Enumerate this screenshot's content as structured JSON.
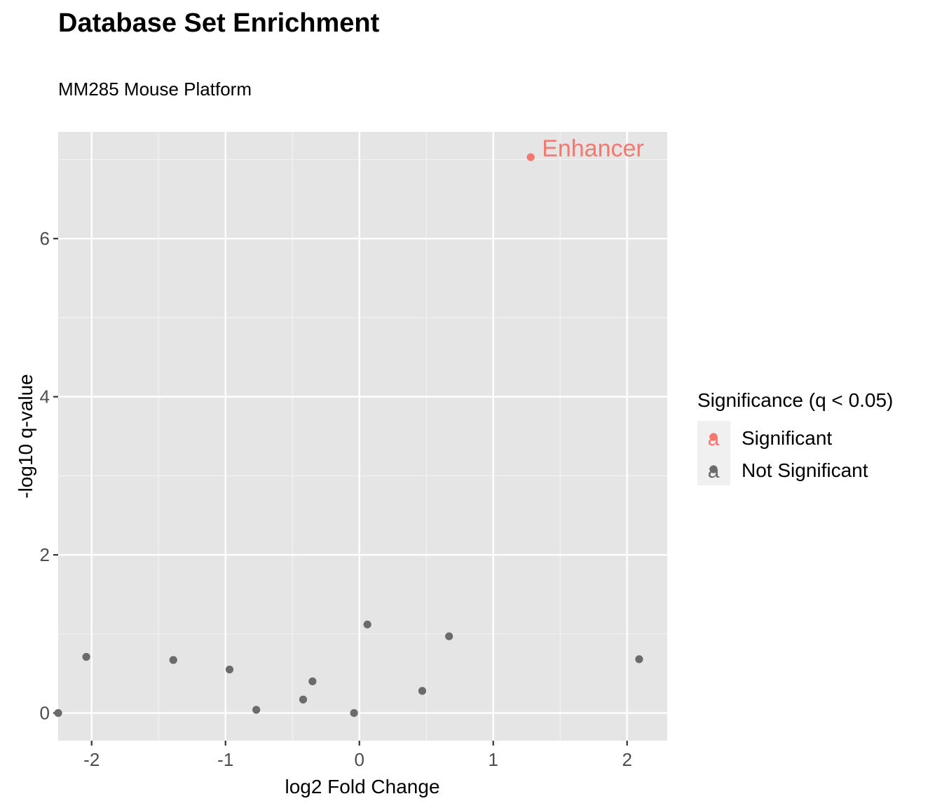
{
  "chart_data": {
    "type": "scatter",
    "title": "Database Set Enrichment",
    "subtitle": "MM285 Mouse Platform",
    "xlabel": "log2 Fold Change",
    "ylabel": "-log10 q-value",
    "xlim": [
      -2.25,
      2.3
    ],
    "ylim": [
      -0.35,
      7.35
    ],
    "x_ticks": [
      -2,
      -1,
      0,
      1,
      2
    ],
    "x_tick_labels": [
      "-2",
      "-1",
      "0",
      "1",
      "2"
    ],
    "y_ticks": [
      0,
      2,
      4,
      6
    ],
    "y_tick_labels": [
      "0",
      "2",
      "4",
      "6"
    ],
    "grid": true,
    "legend": {
      "title": "Significance (q < 0.05)",
      "position": "right",
      "key_glyph": "a",
      "entries": [
        {
          "label": "Significant",
          "color": "#f8766d"
        },
        {
          "label": "Not Significant",
          "color": "#6b6b6b"
        }
      ]
    },
    "series": [
      {
        "name": "Significant",
        "color": "#f8766d",
        "points": [
          {
            "x": 1.28,
            "y": 7.03,
            "label": "Enhancer"
          }
        ]
      },
      {
        "name": "Not Significant",
        "color": "#6b6b6b",
        "points": [
          {
            "x": -2.25,
            "y": 0.0
          },
          {
            "x": -2.04,
            "y": 0.71
          },
          {
            "x": -1.39,
            "y": 0.67
          },
          {
            "x": -0.97,
            "y": 0.55
          },
          {
            "x": -0.77,
            "y": 0.04
          },
          {
            "x": -0.42,
            "y": 0.17
          },
          {
            "x": -0.35,
            "y": 0.4
          },
          {
            "x": -0.04,
            "y": 0.0
          },
          {
            "x": 0.06,
            "y": 1.12
          },
          {
            "x": 0.47,
            "y": 0.28
          },
          {
            "x": 0.67,
            "y": 0.97
          },
          {
            "x": 2.09,
            "y": 0.68
          }
        ]
      }
    ]
  }
}
